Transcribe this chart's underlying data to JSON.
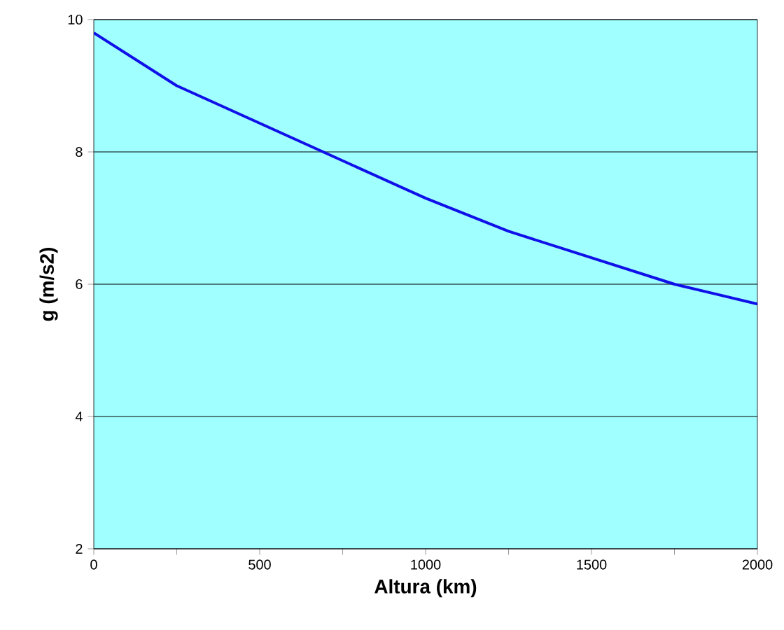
{
  "chart_data": {
    "type": "line",
    "xlabel": "Altura (km)",
    "ylabel": "g (m/s2)",
    "x": [
      0,
      250,
      1000,
      1250,
      1750,
      2000
    ],
    "series": [
      {
        "color": "#1010e8",
        "values": [
          9.8,
          9.0,
          7.3,
          6.8,
          6.0,
          5.7
        ]
      }
    ],
    "xlim": [
      0,
      2000
    ],
    "ylim": [
      2,
      10
    ],
    "xticks": [
      0,
      {
        "value": 250,
        "label": null
      },
      500,
      {
        "value": 750,
        "label": null
      },
      1000,
      {
        "value": 1250,
        "label": null
      },
      1500,
      {
        "value": 1750,
        "label": null
      },
      2000
    ],
    "yticks": [
      2,
      4,
      6,
      8,
      10
    ],
    "grid": "y",
    "marker": "none",
    "line_style": "solid"
  }
}
